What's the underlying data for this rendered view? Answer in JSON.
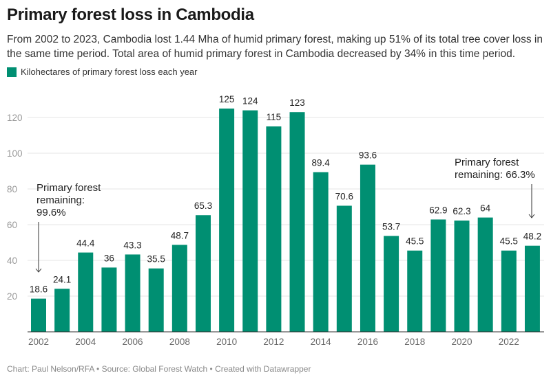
{
  "title": "Primary forest loss in Cambodia",
  "subtitle": "From 2002 to 2023, Cambodia lost 1.44 Mha of humid primary forest, making up 51% of its total tree cover loss in the same time period. Total area of humid primary forest in Cambodia decreased by 34% in this time period.",
  "footer": "Chart: Paul Nelson/RFA • Source: Global Forest Watch • Created with Datawrapper",
  "colors": {
    "bar": "#008f72",
    "grid": "#e6e6e6"
  },
  "chart_data": {
    "type": "bar",
    "categories": [
      "2002",
      "2003",
      "2004",
      "2005",
      "2006",
      "2007",
      "2008",
      "2009",
      "2010",
      "2011",
      "2012",
      "2013",
      "2014",
      "2015",
      "2016",
      "2017",
      "2018",
      "2019",
      "2020",
      "2021",
      "2022",
      "2023"
    ],
    "series": [
      {
        "name": "Kilohectares of primary forest loss each year",
        "values": [
          18.6,
          24.1,
          44.4,
          36,
          43.3,
          35.5,
          48.7,
          65.3,
          125,
          124,
          115,
          123,
          89.4,
          70.6,
          93.6,
          53.7,
          45.5,
          62.9,
          62.3,
          64,
          45.5,
          48.2
        ]
      }
    ],
    "data_labels": [
      "18.6",
      "24.1",
      "44.4",
      "36",
      "43.3",
      "35.5",
      "48.7",
      "65.3",
      "125",
      "124",
      "115",
      "123",
      "89.4",
      "70.6",
      "93.6",
      "53.7",
      "45.5",
      "62.9",
      "62.3",
      "64",
      "45.5",
      "48.2"
    ],
    "x_tick_labels": [
      "2002",
      "2004",
      "2006",
      "2008",
      "2010",
      "2012",
      "2014",
      "2016",
      "2018",
      "2020",
      "2022"
    ],
    "y_ticks": [
      20,
      40,
      60,
      80,
      100,
      120
    ],
    "ylim": [
      0,
      125
    ],
    "grid": true,
    "legend": "top-left",
    "annotations": [
      {
        "lines": [
          "Primary forest",
          "remaining:",
          "99.6%"
        ],
        "points_to": "2002"
      },
      {
        "lines": [
          "Primary forest",
          "remaining: 66.3%"
        ],
        "points_to": "2023"
      }
    ]
  }
}
